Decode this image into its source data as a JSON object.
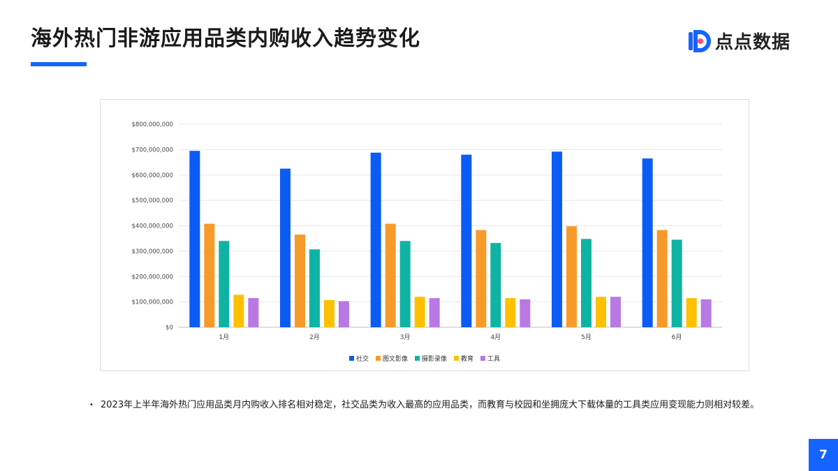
{
  "page": {
    "title": "海外热门非游应用品类内购收入趋势变化",
    "brand_name": "点点数据",
    "note": "2023年上半年海外热门应用品类月内购收入排名相对稳定，社交品类为收入最高的应用品类，而教育与校园和坐拥庞大下载体量的工具类应用变现能力则相对较差。",
    "page_number": "7",
    "bullet": "•"
  },
  "colors": {
    "accent": "#1664ff",
    "series": [
      "#0a5cf5",
      "#f79a2a",
      "#0fb3a3",
      "#ffc000",
      "#b879e3"
    ],
    "grid": "#e6e6e6",
    "axis_text": "#444444"
  },
  "chart_data": {
    "type": "bar",
    "title": "",
    "xlabel": "",
    "ylabel": "",
    "categories": [
      "1月",
      "2月",
      "3月",
      "4月",
      "5月",
      "6月"
    ],
    "ylim": [
      0,
      800000000
    ],
    "yticks": [
      "$0",
      "$100,000,000",
      "$200,000,000",
      "$300,000,000",
      "$400,000,000",
      "$500,000,000",
      "$600,000,000",
      "$700,000,000",
      "$800,000,000"
    ],
    "grid": true,
    "legend_position": "bottom",
    "series": [
      {
        "name": "社交",
        "values": [
          695000000,
          625000000,
          688000000,
          680000000,
          692000000,
          665000000
        ]
      },
      {
        "name": "图文影像",
        "values": [
          408000000,
          365000000,
          408000000,
          383000000,
          398000000,
          383000000
        ]
      },
      {
        "name": "摄影录像",
        "values": [
          340000000,
          307000000,
          340000000,
          332000000,
          348000000,
          345000000
        ]
      },
      {
        "name": "教育",
        "values": [
          128000000,
          107000000,
          120000000,
          115000000,
          120000000,
          115000000
        ]
      },
      {
        "name": "工具",
        "values": [
          115000000,
          103000000,
          115000000,
          110000000,
          120000000,
          110000000
        ]
      }
    ]
  }
}
